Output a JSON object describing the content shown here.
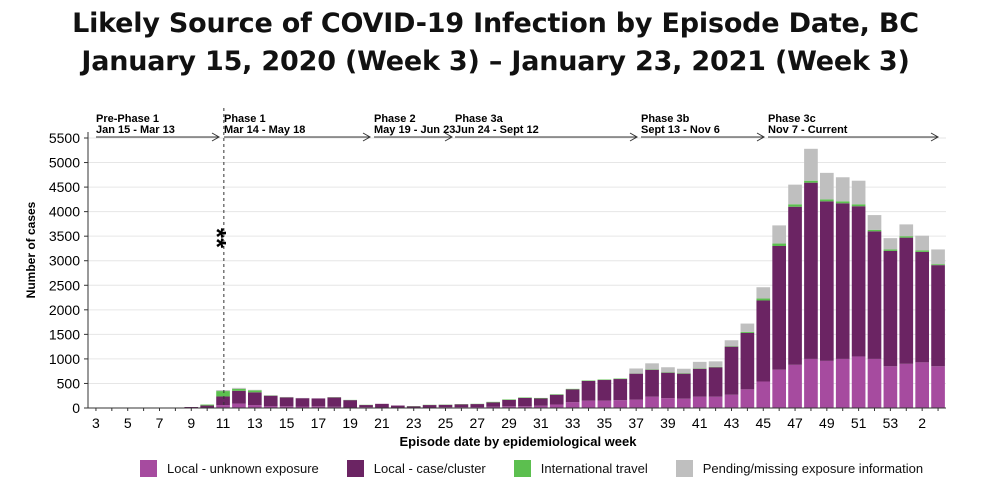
{
  "title_line1": "Likely Source of COVID-19 Infection by Episode Date, BC",
  "title_line2": "January 15, 2020 (Week 3) – January 23, 2021 (Week 3)",
  "colors": {
    "local_unknown": "#a64b9f",
    "local_cluster": "#6b2463",
    "international": "#5cbf4f",
    "pending": "#bfbfbf"
  },
  "chart_data": {
    "type": "bar",
    "stacked": true,
    "xlabel": "Episode date by epidemiological week",
    "ylabel": "Number of cases",
    "ylim": [
      0,
      5500
    ],
    "yticks": [
      0,
      500,
      1000,
      1500,
      2000,
      2500,
      3000,
      3500,
      4000,
      4500,
      5000,
      5500
    ],
    "annotation": "**",
    "categories": [
      "3",
      "4",
      "5",
      "6",
      "7",
      "8",
      "9",
      "10",
      "11",
      "12",
      "13",
      "14",
      "15",
      "16",
      "17",
      "18",
      "19",
      "20",
      "21",
      "22",
      "23",
      "24",
      "25",
      "26",
      "27",
      "28",
      "29",
      "30",
      "31",
      "32",
      "33",
      "34",
      "35",
      "36",
      "37",
      "38",
      "39",
      "40",
      "41",
      "42",
      "43",
      "44",
      "45",
      "46",
      "47",
      "48",
      "49",
      "50",
      "51",
      "52",
      "53",
      "1",
      "2",
      "3"
    ],
    "xtick_labels": [
      "3",
      "5",
      "7",
      "9",
      "11",
      "13",
      "15",
      "17",
      "19",
      "21",
      "23",
      "25",
      "27",
      "29",
      "31",
      "33",
      "35",
      "37",
      "39",
      "41",
      "43",
      "45",
      "47",
      "49",
      "51",
      "53",
      "2"
    ],
    "series": [
      {
        "name": "Local - unknown exposure",
        "values": [
          0,
          0,
          0,
          0,
          0,
          0,
          5,
          10,
          60,
          90,
          60,
          40,
          35,
          30,
          35,
          25,
          10,
          15,
          10,
          5,
          5,
          10,
          15,
          15,
          20,
          25,
          35,
          35,
          45,
          70,
          120,
          150,
          150,
          160,
          170,
          230,
          200,
          190,
          230,
          230,
          270,
          380,
          540,
          780,
          880,
          1000,
          960,
          1000,
          1050,
          1000,
          850,
          900,
          930,
          850
        ]
      },
      {
        "name": "Local - case/cluster",
        "values": [
          0,
          0,
          0,
          0,
          0,
          0,
          15,
          40,
          175,
          260,
          260,
          210,
          180,
          170,
          160,
          190,
          150,
          45,
          75,
          45,
          30,
          50,
          50,
          60,
          60,
          90,
          130,
          170,
          150,
          200,
          260,
          400,
          420,
          430,
          530,
          550,
          520,
          510,
          570,
          600,
          980,
          1150,
          1650,
          2520,
          3220,
          3590,
          3250,
          3170,
          3060,
          2600,
          2350,
          2570,
          2250,
          2060
        ]
      },
      {
        "name": "International travel",
        "values": [
          0,
          0,
          0,
          0,
          0,
          0,
          0,
          20,
          110,
          40,
          40,
          5,
          5,
          0,
          0,
          5,
          5,
          5,
          0,
          0,
          5,
          5,
          5,
          5,
          5,
          10,
          10,
          10,
          10,
          10,
          10,
          10,
          10,
          10,
          5,
          10,
          10,
          10,
          10,
          10,
          10,
          20,
          40,
          50,
          50,
          40,
          40,
          40,
          40,
          30,
          30,
          30,
          30,
          20
        ]
      },
      {
        "name": "Pending/missing exposure information",
        "values": [
          0,
          0,
          0,
          0,
          0,
          0,
          0,
          0,
          20,
          20,
          10,
          5,
          5,
          5,
          0,
          0,
          0,
          0,
          0,
          0,
          0,
          0,
          0,
          0,
          0,
          0,
          0,
          0,
          0,
          0,
          0,
          0,
          0,
          0,
          100,
          120,
          100,
          90,
          130,
          110,
          120,
          170,
          230,
          370,
          400,
          650,
          540,
          490,
          480,
          300,
          230,
          240,
          300,
          300
        ]
      }
    ],
    "phases": [
      {
        "name": "Pre-Phase 1",
        "dates": "Jan 15 - Mar 13"
      },
      {
        "name": "Phase 1",
        "dates": "Mar 14 - May 18"
      },
      {
        "name": "Phase 2",
        "dates": "May 19 - Jun 23"
      },
      {
        "name": "Phase 3a",
        "dates": "Jun 24 - Sept 12"
      },
      {
        "name": "Phase 3b",
        "dates": "Sept 13 - Nov 6"
      },
      {
        "name": "Phase 3c",
        "dates": "Nov 7 - Current"
      }
    ]
  },
  "legend": [
    {
      "label": "Local - unknown exposure",
      "color": "#a64b9f"
    },
    {
      "label": "Local - case/cluster",
      "color": "#6b2463"
    },
    {
      "label": "International travel",
      "color": "#5cbf4f"
    },
    {
      "label": "Pending/missing exposure information",
      "color": "#bfbfbf"
    }
  ]
}
